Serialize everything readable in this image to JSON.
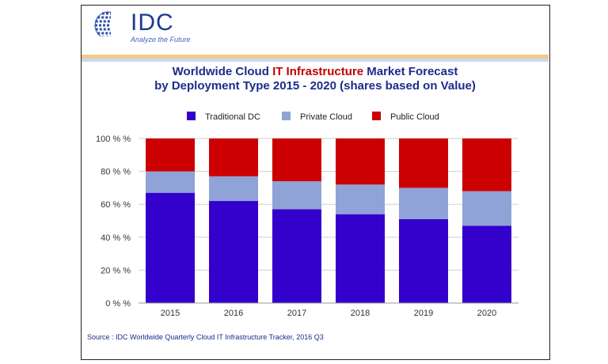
{
  "logo": {
    "name": "IDC",
    "tagline": "Analyze the Future"
  },
  "chart_data": {
    "type": "bar",
    "stacked": true,
    "title_line1": {
      "pre": "Worldwide Cloud ",
      "highlight": "IT Infrastructure",
      "post": " Market Forecast"
    },
    "title_line2": "by Deployment Type  2015 - 2020 (shares based on Value)",
    "categories": [
      "2015",
      "2016",
      "2017",
      "2018",
      "2019",
      "2020"
    ],
    "series": [
      {
        "name": "Traditional DC",
        "color": "#3300cc",
        "values": [
          67,
          62,
          57,
          54,
          51,
          47
        ]
      },
      {
        "name": "Private Cloud",
        "color": "#8fa3d6",
        "values": [
          13,
          15,
          17,
          18,
          19,
          21
        ]
      },
      {
        "name": "Public Cloud",
        "color": "#cc0000",
        "values": [
          20,
          23,
          26,
          28,
          30,
          32
        ]
      }
    ],
    "ylim": [
      0,
      100
    ],
    "yticks": [
      "0 % %",
      "20 % %",
      "40 % %",
      "60 % %",
      "80 % %",
      "100 % %"
    ],
    "grid": true,
    "legend_position": "top",
    "source": "Source : IDC Worldwide Quarterly Cloud IT Infrastructure Tracker, 2016 Q3"
  }
}
